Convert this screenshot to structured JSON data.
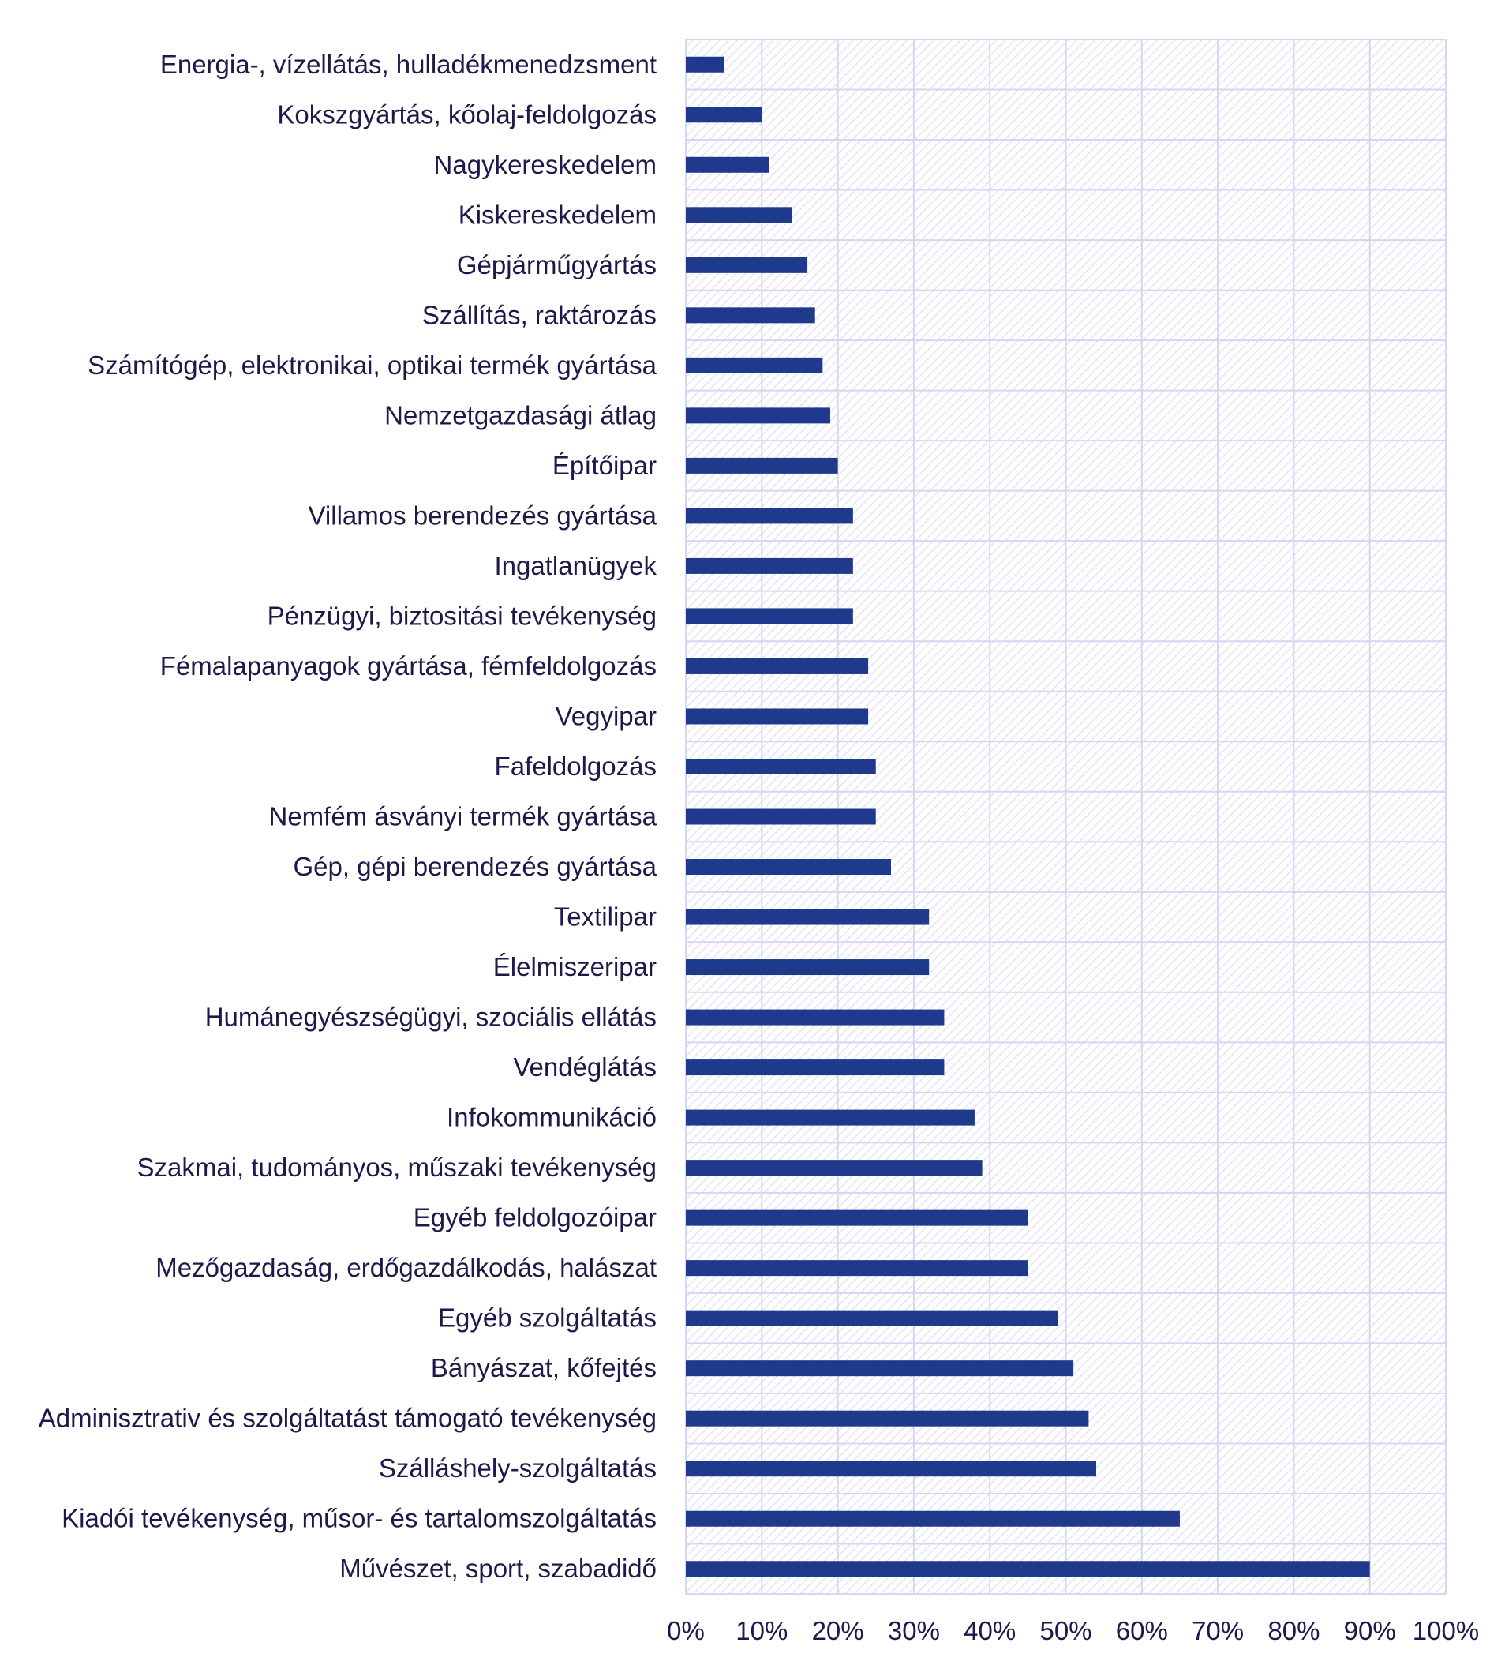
{
  "chart_data": {
    "type": "bar",
    "orientation": "horizontal",
    "title": "",
    "xlabel": "",
    "ylabel": "",
    "xlim": [
      0,
      100
    ],
    "grid": true,
    "legend": "none",
    "tick_labels": [
      "0%",
      "10%",
      "20%",
      "30%",
      "40%",
      "50%",
      "60%",
      "70%",
      "80%",
      "90%",
      "100%"
    ],
    "categories": [
      "Energia-, vízellátás, hulladékmenedzsment",
      "Kokszgyártás, kőolaj-feldolgozás",
      "Nagykereskedelem",
      "Kiskereskedelem",
      "Gépjárműgyártás",
      "Szállítás, raktározás",
      "Számítógép, elektronikai, optikai termék gyártása",
      "Nemzetgazdasági átlag",
      "Építőipar",
      "Villamos berendezés gyártása",
      "Ingatlanügyek",
      "Pénzügyi, biztositási tevékenység",
      "Fémalapanyagok gyártása, fémfeldolgozás",
      "Vegyipar",
      "Fafeldolgozás",
      "Nemfém ásványi termék gyártása",
      "Gép, gépi berendezés gyártása",
      "Textilipar",
      "Élelmiszeripar",
      "Humánegyészségügyi, szociális ellátás",
      "Vendéglátás",
      "Infokommunikáció",
      "Szakmai, tudományos, műszaki tevékenység",
      "Egyéb feldolgozóipar",
      "Mezőgazdaság, erdőgazdálkodás, halászat",
      "Egyéb szolgáltatás",
      "Bányászat, kőfejtés",
      "Adminisztrativ és szolgáltatást támogató tevékenység",
      "Szálláshely-szolgáltatás",
      "Kiadói tevékenység, műsor- és tartalomszolgáltatás",
      "Művészet, sport, szabadidő"
    ],
    "values": [
      5,
      10,
      11,
      14,
      16,
      17,
      18,
      19,
      20,
      22,
      22,
      22,
      24,
      24,
      25,
      25,
      27,
      32,
      32,
      34,
      34,
      38,
      39,
      45,
      45,
      49,
      51,
      53,
      54,
      65,
      90
    ],
    "colors": {
      "bar": "#1f3a8c",
      "grid": "#d6d6f2",
      "hatch": "#e4e4f4",
      "text": "#1c1a4a"
    }
  }
}
